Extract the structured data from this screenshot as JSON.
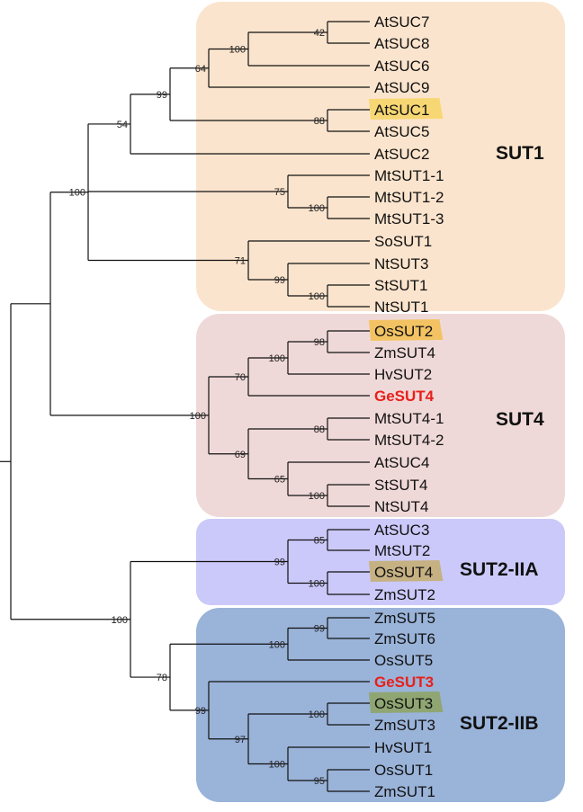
{
  "clades": [
    {
      "id": "sut1",
      "label": "SUT1",
      "color": "#fbe4cd"
    },
    {
      "id": "sut4",
      "label": "SUT4",
      "color": "#efd9d8"
    },
    {
      "id": "sut2iia",
      "label": "SUT2-IIA",
      "color": "#cbc9f9"
    },
    {
      "id": "sut2iib",
      "label": "SUT2-IIB",
      "color": "#9ab3d9"
    }
  ],
  "leaves": [
    {
      "name": "AtSUC7"
    },
    {
      "name": "AtSUC8"
    },
    {
      "name": "AtSUC6"
    },
    {
      "name": "AtSUC9"
    },
    {
      "name": "AtSUC1",
      "highlight": "#f7d66e"
    },
    {
      "name": "AtSUC5"
    },
    {
      "name": "AtSUC2"
    },
    {
      "name": "MtSUT1-1"
    },
    {
      "name": "MtSUT1-2"
    },
    {
      "name": "MtSUT1-3"
    },
    {
      "name": "SoSUT1"
    },
    {
      "name": "NtSUT3"
    },
    {
      "name": "StSUT1"
    },
    {
      "name": "NtSUT1"
    },
    {
      "name": "OsSUT2",
      "highlight": "#f2c25d"
    },
    {
      "name": "ZmSUT4"
    },
    {
      "name": "HvSUT2"
    },
    {
      "name": "GeSUT4",
      "emphasis": "#e8201a"
    },
    {
      "name": "MtSUT4-1"
    },
    {
      "name": "MtSUT4-2"
    },
    {
      "name": "AtSUC4"
    },
    {
      "name": "StSUT4"
    },
    {
      "name": "NtSUT4"
    },
    {
      "name": "AtSUC3"
    },
    {
      "name": "MtSUT2"
    },
    {
      "name": "OsSUT4",
      "highlight": "#c5b07c"
    },
    {
      "name": "ZmSUT2"
    },
    {
      "name": "ZmSUT5"
    },
    {
      "name": "ZmSUT6"
    },
    {
      "name": "OsSUT5"
    },
    {
      "name": "GeSUT3",
      "emphasis": "#e8201a"
    },
    {
      "name": "OsSUT3",
      "highlight": "#8ea56d"
    },
    {
      "name": "ZmSUT3"
    },
    {
      "name": "HvSUT1"
    },
    {
      "name": "OsSUT1"
    },
    {
      "name": "ZmSUT1"
    }
  ],
  "bootstrap": {
    "n7_8": "42",
    "n6": "100",
    "n9": "64",
    "n1_5": "88",
    "nA2": "99",
    "nSUT1a": "54",
    "nMt23": "100",
    "nMt1": "75",
    "nStNt": "100",
    "nNt3": "99",
    "nSo": "71",
    "nSUT1": "100",
    "nOs2Zm4": "98",
    "nHv2": "100",
    "nGe4": "70",
    "nMt4": "88",
    "nStNt4": "100",
    "nAt4": "65",
    "nMtAt4": "69",
    "nSUT4": "100",
    "nAt3Mt2": "85",
    "nOs4Zm2": "100",
    "nIIA": "99",
    "nZm56": "99",
    "nOs5": "100",
    "nOs3Zm3": "100",
    "nOs1Zm1": "95",
    "nHv1": "100",
    "nOsZmHv": "97",
    "nGe3": "99",
    "nIIBcore": "78",
    "nSUT2": "100"
  }
}
